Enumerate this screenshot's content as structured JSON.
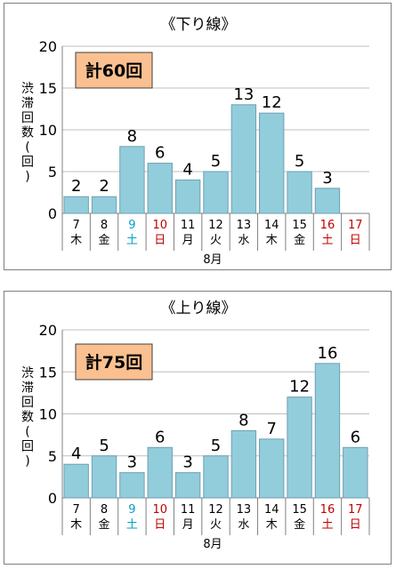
{
  "chart_data": [
    {
      "type": "bar",
      "title": "《下り線》",
      "total_label": "計60回",
      "ylabel": "渋滞回数(回)",
      "xlabel": "8月",
      "ylim": [
        0,
        20
      ],
      "yticks": [
        0,
        5,
        10,
        15,
        20
      ],
      "categories": [
        "7",
        "8",
        "9",
        "10",
        "11",
        "12",
        "13",
        "14",
        "15",
        "16",
        "17"
      ],
      "weekdays": [
        "木",
        "金",
        "土",
        "日",
        "月",
        "火",
        "水",
        "木",
        "金",
        "土",
        "日"
      ],
      "day_colors": [
        "#000000",
        "#000000",
        "#00a0c8",
        "#c00000",
        "#000000",
        "#000000",
        "#000000",
        "#000000",
        "#000000",
        "#c00000",
        "#c00000"
      ],
      "values": [
        2,
        2,
        8,
        6,
        4,
        5,
        13,
        12,
        5,
        3,
        null
      ],
      "grid": true,
      "bar_color": "#92cddc",
      "box_color": "#fac090"
    },
    {
      "type": "bar",
      "title": "《上り線》",
      "total_label": "計75回",
      "ylabel": "渋滞回数(回)",
      "xlabel": "8月",
      "ylim": [
        0,
        20
      ],
      "yticks": [
        0,
        5,
        10,
        15,
        20
      ],
      "categories": [
        "7",
        "8",
        "9",
        "10",
        "11",
        "12",
        "13",
        "14",
        "15",
        "16",
        "17"
      ],
      "weekdays": [
        "木",
        "金",
        "土",
        "日",
        "月",
        "火",
        "水",
        "木",
        "金",
        "土",
        "日"
      ],
      "day_colors": [
        "#000000",
        "#000000",
        "#00a0c8",
        "#c00000",
        "#000000",
        "#000000",
        "#000000",
        "#000000",
        "#000000",
        "#c00000",
        "#c00000"
      ],
      "values": [
        4,
        5,
        3,
        6,
        3,
        5,
        8,
        7,
        12,
        16,
        6
      ],
      "grid": true,
      "bar_color": "#92cddc",
      "box_color": "#fac090"
    }
  ]
}
